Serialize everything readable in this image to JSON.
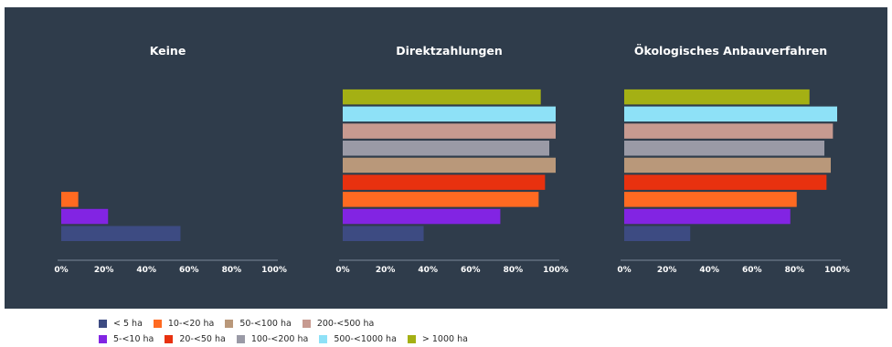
{
  "chart_data": {
    "type": "bar",
    "orientation": "horizontal",
    "series": [
      {
        "name": "< 5 ha",
        "color": "#3d4b82"
      },
      {
        "name": "5-<10 ha",
        "color": "#8224e3"
      },
      {
        "name": "10-<20 ha",
        "color": "#ff6a21"
      },
      {
        "name": "20-<50 ha",
        "color": "#e8310f"
      },
      {
        "name": "50-<100 ha",
        "color": "#b9987a"
      },
      {
        "name": "100-<200 ha",
        "color": "#9a9aa6"
      },
      {
        "name": "200-<500 ha",
        "color": "#c79a90"
      },
      {
        "name": "500-<1000 ha",
        "color": "#8ee1f7"
      },
      {
        "name": "> 1000 ha",
        "color": "#a4b014"
      }
    ],
    "panels": [
      {
        "title": "Keine",
        "values": [
          56,
          22,
          8,
          0,
          0,
          0,
          0,
          0,
          0
        ]
      },
      {
        "title": "Direktzahlungen",
        "values": [
          38,
          74,
          92,
          95,
          100,
          97,
          100,
          100,
          93
        ]
      },
      {
        "title": "Ökologisches Anbauverfahren",
        "values": [
          31,
          78,
          81,
          95,
          97,
          94,
          98,
          100,
          87
        ]
      }
    ],
    "x_ticks": [
      "0%",
      "20%",
      "40%",
      "60%",
      "80%",
      "100%"
    ],
    "xlim": [
      0,
      100
    ],
    "legend_position": "bottom-left",
    "grid": false
  },
  "colors": {
    "background": "#2f3c4b",
    "text_light": "#ffffff",
    "axis": "#6c7a8a"
  },
  "legend_rows": [
    [
      0,
      2,
      4,
      6
    ],
    [
      1,
      3,
      5,
      7,
      8
    ]
  ]
}
